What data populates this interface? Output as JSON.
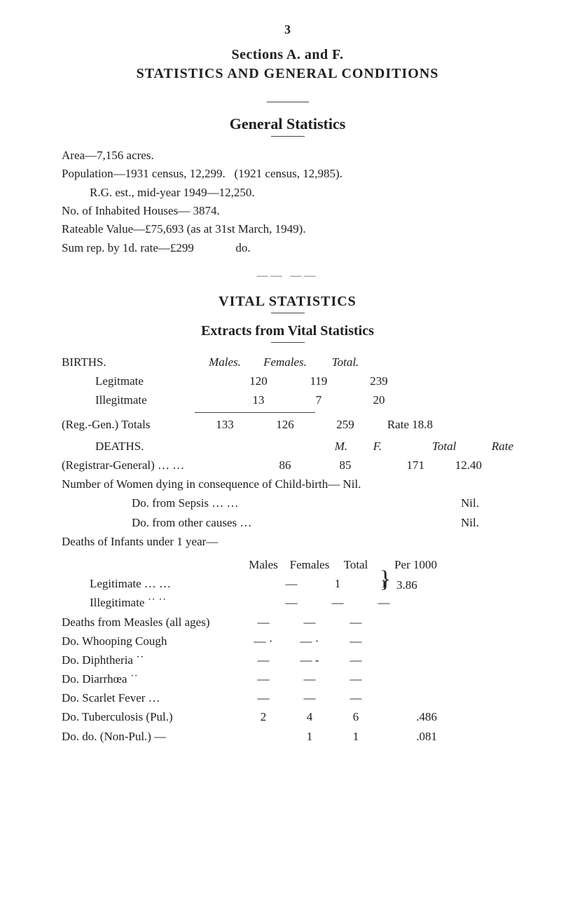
{
  "page_number": "3",
  "heading1": "Sections A. and F.",
  "heading2": "STATISTICS AND GENERAL CONDITIONS",
  "general_title": "General Statistics",
  "area_line": "Area—7,156 acres.",
  "pop_line": "Population—1931 census, 12,299.   (1921 census, 12,985).",
  "rg_line": "R.G. est., mid-year 1949—12,250.",
  "houses_line": "No. of Inhabited Houses— 3874.",
  "rateable_line": "Rateable Value—£75,693 (as at 31st March, 1949).",
  "sum_line": "Sum rep. by 1d. rate—£299              do.",
  "vital_title": "VITAL STATISTICS",
  "extracts_title": "Extracts from Vital Statistics",
  "births": {
    "hdr_row0": "BIRTHS.",
    "hdr_males": "Males.",
    "hdr_females": "Females.",
    "hdr_total": "Total.",
    "row_leg_label": "Legitmate",
    "row_leg_m": "120",
    "row_leg_f": "119",
    "row_leg_t": "239",
    "row_ill_label": "Illegitmate",
    "row_ill_m": "13",
    "row_ill_f": "7",
    "row_ill_t": "20",
    "tot_label": "(Reg.-Gen.)   Totals",
    "tot_m": "133",
    "tot_f": "126",
    "tot_t": "259",
    "rate_label": "Rate 18.8"
  },
  "deaths": {
    "label": "DEATHS.",
    "col_m": "M.",
    "col_f": "F.",
    "col_total": "Total",
    "col_rate": "Rate",
    "reg_label": "(Registrar-General)         …      …",
    "reg_m": "86",
    "reg_f": "85",
    "reg_tot": "171",
    "reg_rate": "12.40",
    "women_line": "Number of Women dying in consequence of Child-birth— Nil.",
    "do1_label": "Do.                 from Sepsis         …       …",
    "do1_val": "Nil.",
    "do2_label": "Do.                 from other causes           …",
    "do2_val": "Nil.",
    "infants_line": "Deaths of Infants under 1 year—"
  },
  "per1000": {
    "hdr_males": "Males",
    "hdr_females": "Females",
    "hdr_total": "Total",
    "hdr_per": "Per 1000",
    "rows": [
      {
        "label": "Legitimate            …        …",
        "m": "—",
        "f": "1",
        "t": "1",
        "per": ""
      },
      {
        "label": "Illegitimate           ˙˙        ˙˙",
        "m": "—",
        "f": "—",
        "t": "—",
        "per": "3.86"
      }
    ],
    "brace_val": "3.86"
  },
  "deaths_from": {
    "rows": [
      {
        "label": "Deaths from Measles (all ages)",
        "m": "—",
        "f": "—",
        "t": "—",
        "per": ""
      },
      {
        "label": "Do.       Whooping Cough",
        "m": "— ·",
        "f": "— ·",
        "t": "—",
        "per": ""
      },
      {
        "label": "Do.       Diphtheria           ˙˙",
        "m": "—",
        "f": "— -",
        "t": "—",
        "per": ""
      },
      {
        "label": "Do.       Diarrhœa             ˙˙",
        "m": "—",
        "f": "—",
        "t": "—",
        "per": ""
      },
      {
        "label": "Do.       Scarlet Fever       …",
        "m": "—",
        "f": "—",
        "t": "—",
        "per": ""
      },
      {
        "label": "Do.       Tuberculosis (Pul.)",
        "m": "2",
        "f": "4",
        "t": "6",
        "per": ".486"
      },
      {
        "label": "Do.           do.      (Non-Pul.)  —",
        "m": "",
        "f": "1",
        "t": "1",
        "per": ".081"
      }
    ]
  },
  "colors": {
    "text": "#1e1e1e",
    "rule": "#444444",
    "bg": "#ffffff"
  }
}
